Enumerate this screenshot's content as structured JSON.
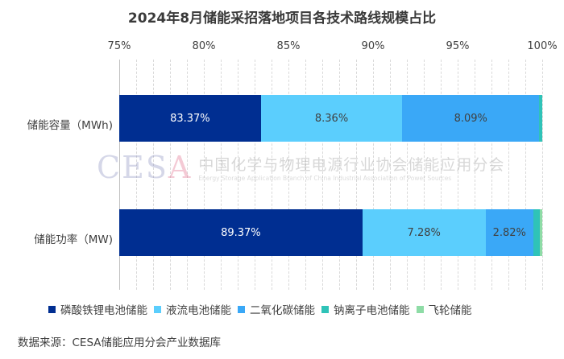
{
  "title": "2024年8月储能采招落地项目各技术路线规模占比",
  "axis": {
    "ticks": [
      "75%",
      "80%",
      "85%",
      "90%",
      "95%",
      "100%"
    ],
    "min": 75,
    "max": 100
  },
  "categories": [
    {
      "label": "储能容量（MWh)",
      "values": [
        83.37,
        8.36,
        8.09,
        0.18,
        0.0
      ],
      "labels": [
        "83.37%",
        "8.36%",
        "8.09%",
        "",
        ""
      ]
    },
    {
      "label": "储能功率（MW)",
      "values": [
        89.37,
        7.28,
        2.82,
        0.4,
        0.13
      ],
      "labels": [
        "89.37%",
        "7.28%",
        "2.82%",
        "",
        ""
      ]
    }
  ],
  "legend": [
    {
      "name": "磷酸铁锂电池储能",
      "color": "#002e91"
    },
    {
      "name": "液流电池储能",
      "color": "#5bcefd"
    },
    {
      "name": "二氧化碳储能",
      "color": "#3aa8f7"
    },
    {
      "name": "钠离子电池储能",
      "color": "#2fc3b8"
    },
    {
      "name": "飞轮储能",
      "color": "#8edca6"
    }
  ],
  "watermark": {
    "logo": "CESA",
    "cn": "中国化学与物理电源行业协会储能应用分会",
    "en": "Energy Storage Application Branch of China Industrial Association of Power Sources"
  },
  "source": "数据来源：CESA储能应用分会产业数据库",
  "chart_data": {
    "type": "bar",
    "orientation": "horizontal",
    "stacked": true,
    "title": "2024年8月储能采招落地项目各技术路线规模占比",
    "categories": [
      "储能容量（MWh)",
      "储能功率（MW)"
    ],
    "series": [
      {
        "name": "磷酸铁锂电池储能",
        "values": [
          83.37,
          89.37
        ]
      },
      {
        "name": "液流电池储能",
        "values": [
          8.36,
          7.28
        ]
      },
      {
        "name": "二氧化碳储能",
        "values": [
          8.09,
          2.82
        ]
      },
      {
        "name": "钠离子电池储能",
        "values": [
          0.18,
          0.4
        ]
      },
      {
        "name": "飞轮储能",
        "values": [
          0.0,
          0.13
        ]
      }
    ],
    "xlabel": "",
    "ylabel": "",
    "xlim": [
      75,
      100
    ],
    "xticks": [
      "75%",
      "80%",
      "85%",
      "90%",
      "95%",
      "100%"
    ],
    "grid": true,
    "legend_position": "bottom",
    "annotations": [
      "数据来源：CESA储能应用分会产业数据库"
    ]
  }
}
